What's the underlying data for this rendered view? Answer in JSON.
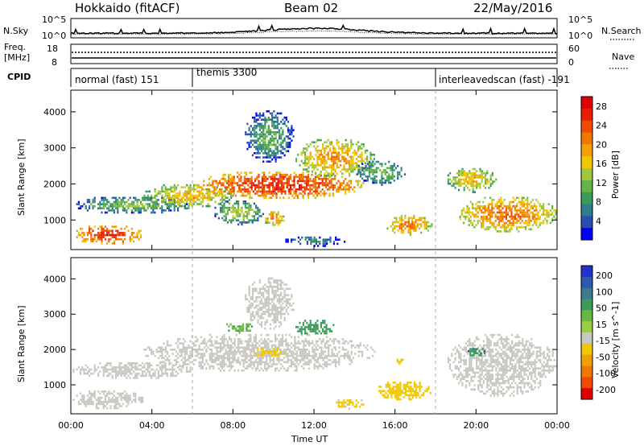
{
  "header": {
    "station": "Hokkaido (fitACF)",
    "beam": "Beam 02",
    "date": "22/May/2016"
  },
  "side_labels": {
    "nsky": "N.Sky",
    "nsearch": "N.Search",
    "freq_line1": "Freq.",
    "freq_line2": "[MHz]",
    "nave": "Nave",
    "cpid": "CPID"
  },
  "top_axes": {
    "noise_left_ticks": [
      "10^5",
      "10^0"
    ],
    "noise_right_ticks": [
      "10^5",
      "10^0"
    ],
    "freq_left_ticks": [
      "18",
      "8"
    ],
    "nave_right_ticks": [
      "60",
      "0"
    ]
  },
  "cpid_segments": [
    {
      "label": "normal (fast) 151",
      "start_hour": 0,
      "end_hour": 6
    },
    {
      "label": "themis 3300",
      "start_hour": 6,
      "end_hour": 18
    },
    {
      "label": "interleavedscan (fast) -191",
      "start_hour": 18,
      "end_hour": 24
    }
  ],
  "chart_data": [
    {
      "type": "heatmap",
      "panel": "power",
      "xlabel": "Time UT",
      "ylabel": "Slant Range [km]",
      "x_ticks": [
        "00:00",
        "04:00",
        "08:00",
        "12:00",
        "16:00",
        "20:00",
        "00:00"
      ],
      "xlim_hours": [
        0,
        24
      ],
      "y_ticks": [
        "1000",
        "2000",
        "3000",
        "4000"
      ],
      "ylim": [
        180,
        4600
      ],
      "colorbar": {
        "label": "Power [dB]",
        "ticks": [
          "4",
          "8",
          "12",
          "16",
          "20",
          "24",
          "28"
        ],
        "range": [
          0,
          30
        ],
        "colors": [
          "#0000ff",
          "#2a4fb0",
          "#2e7d8c",
          "#3c9a5a",
          "#64b446",
          "#a0c83c",
          "#f0c800",
          "#f5a000",
          "#f07800",
          "#f04a00",
          "#e81e00",
          "#e00000"
        ]
      },
      "regions": [
        {
          "t0": 0.0,
          "t1": 3.6,
          "r0": 350,
          "r1": 900,
          "value": 26
        },
        {
          "t0": 0.0,
          "t1": 6.0,
          "r0": 1200,
          "r1": 1700,
          "value": 12
        },
        {
          "t0": 3.5,
          "t1": 8.0,
          "r0": 1350,
          "r1": 2050,
          "value": 18
        },
        {
          "t0": 6.0,
          "t1": 14.5,
          "r0": 1600,
          "r1": 2400,
          "value": 26
        },
        {
          "t0": 7.0,
          "t1": 9.5,
          "r0": 900,
          "r1": 1600,
          "value": 14
        },
        {
          "t0": 9.5,
          "t1": 10.5,
          "r0": 850,
          "r1": 1300,
          "value": 22
        },
        {
          "t0": 8.5,
          "t1": 11.0,
          "r0": 2600,
          "r1": 4100,
          "value": 11
        },
        {
          "t0": 11.0,
          "t1": 15.0,
          "r0": 2200,
          "r1": 3300,
          "value": 20
        },
        {
          "t0": 14.0,
          "t1": 16.5,
          "r0": 2000,
          "r1": 2700,
          "value": 12
        },
        {
          "t0": 15.5,
          "t1": 17.8,
          "r0": 600,
          "r1": 1200,
          "value": 21
        },
        {
          "t0": 10.5,
          "t1": 13.5,
          "r0": 300,
          "r1": 600,
          "value": 8
        },
        {
          "t0": 18.5,
          "t1": 21.0,
          "r0": 1800,
          "r1": 2500,
          "value": 18
        },
        {
          "t0": 19.0,
          "t1": 24.0,
          "r0": 700,
          "r1": 1700,
          "value": 22
        }
      ]
    },
    {
      "type": "heatmap",
      "panel": "velocity",
      "xlabel": "Time UT",
      "ylabel": "Slant Range [km]",
      "x_ticks": [
        "00:00",
        "04:00",
        "08:00",
        "12:00",
        "16:00",
        "20:00",
        "00:00"
      ],
      "xlim_hours": [
        0,
        24
      ],
      "y_ticks": [
        "1000",
        "2000",
        "3000",
        "4000"
      ],
      "ylim": [
        180,
        4600
      ],
      "colorbar": {
        "label": "Velocity [m s^-1]",
        "ticks": [
          "200",
          "100",
          "50",
          "15",
          "-15",
          "-50",
          "-100",
          "-200"
        ],
        "colors": [
          "#2233cc",
          "#2a5aa8",
          "#3a7a8c",
          "#3c9a5a",
          "#6ab840",
          "#9acc44",
          "#c8c8c0",
          "#f0c800",
          "#f0a000",
          "#f07800",
          "#f04a00",
          "#e00000"
        ]
      },
      "regions": [
        {
          "t0": 0.0,
          "t1": 3.6,
          "r0": 350,
          "r1": 900,
          "value": 0
        },
        {
          "t0": 0.0,
          "t1": 6.0,
          "r0": 1200,
          "r1": 1700,
          "value": 0
        },
        {
          "t0": 3.5,
          "t1": 15.0,
          "r0": 1400,
          "r1": 2500,
          "value": 0
        },
        {
          "t0": 8.5,
          "t1": 11.0,
          "r0": 2600,
          "r1": 4100,
          "value": 0
        },
        {
          "t0": 11.0,
          "t1": 13.0,
          "r0": 2400,
          "r1": 2900,
          "value": 60
        },
        {
          "t0": 7.5,
          "t1": 9.0,
          "r0": 2500,
          "r1": 2800,
          "value": 45
        },
        {
          "t0": 9.0,
          "t1": 10.5,
          "r0": 1800,
          "r1": 2100,
          "value": -25
        },
        {
          "t0": 15.0,
          "t1": 17.8,
          "r0": 600,
          "r1": 1150,
          "value": -30
        },
        {
          "t0": 16.0,
          "t1": 16.5,
          "r0": 1600,
          "r1": 1800,
          "value": -35
        },
        {
          "t0": 13.0,
          "t1": 14.5,
          "r0": 350,
          "r1": 650,
          "value": -20
        },
        {
          "t0": 18.5,
          "t1": 24.0,
          "r0": 700,
          "r1": 2500,
          "value": 0
        },
        {
          "t0": 19.5,
          "t1": 20.5,
          "r0": 1800,
          "r1": 2100,
          "value": 70
        }
      ]
    }
  ]
}
